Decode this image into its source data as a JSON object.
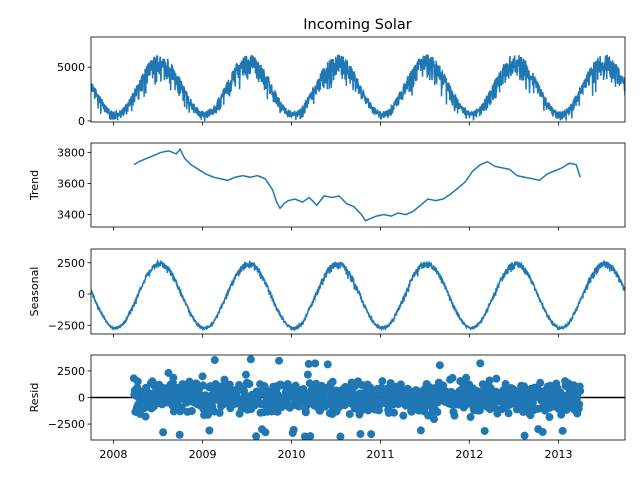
{
  "chart_data": {
    "type": "line",
    "title": "Incoming Solar",
    "x_tick_labels": [
      "2008",
      "2009",
      "2010",
      "2011",
      "2012",
      "2013"
    ],
    "xlim": [
      "2007-10-01",
      "2013-10-01"
    ],
    "series_color": "#1f77b4",
    "panels": [
      {
        "name": "observed",
        "ylabel": "",
        "kind": "line",
        "ylim": [
          -100,
          7800
        ],
        "yticks": [
          0,
          5000
        ],
        "ytick_labels": [
          "0",
          "5000"
        ],
        "model": {
          "mean": 3550,
          "amplitude": 2650,
          "noise": 1000,
          "peak_month": 6.3
        },
        "x": [
          "2007-10-01",
          "2007-12-01",
          "2008-02-01",
          "2008-04-01",
          "2008-06-01",
          "2008-08-01",
          "2008-10-01",
          "2008-12-01",
          "2009-02-01",
          "2009-04-01",
          "2009-06-01",
          "2009-08-01",
          "2009-10-01",
          "2009-12-01",
          "2010-02-01",
          "2010-04-01",
          "2010-06-01",
          "2010-08-01",
          "2010-10-01",
          "2010-12-01",
          "2011-02-01",
          "2011-04-01",
          "2011-06-01",
          "2011-08-01",
          "2011-10-01",
          "2011-12-01",
          "2012-02-01",
          "2012-04-01",
          "2012-06-01",
          "2012-08-01",
          "2012-10-01",
          "2012-12-01",
          "2013-02-01",
          "2013-04-01",
          "2013-06-01",
          "2013-08-01",
          "2013-10-01"
        ],
        "y": [
          2400,
          900,
          1500,
          3800,
          6600,
          5800,
          2600,
          900,
          1600,
          4000,
          6700,
          5600,
          2400,
          700,
          1300,
          3500,
          6200,
          5300,
          2200,
          600,
          1200,
          3600,
          6600,
          5600,
          2300,
          800,
          1400,
          3900,
          6900,
          5700,
          2300,
          800,
          1500,
          3800,
          6700,
          5800,
          2400
        ]
      },
      {
        "name": "trend",
        "ylabel": "Trend",
        "kind": "line",
        "ylim": [
          3320,
          3860
        ],
        "yticks": [
          3400,
          3600,
          3800
        ],
        "ytick_labels": [
          "3400",
          "3600",
          "3800"
        ],
        "x": [
          "2008-03-25",
          "2008-04-15",
          "2008-05-15",
          "2008-06-15",
          "2008-07-15",
          "2008-08-15",
          "2008-09-15",
          "2008-10-01",
          "2008-10-20",
          "2008-11-15",
          "2008-12-15",
          "2009-01-15",
          "2009-02-15",
          "2009-03-15",
          "2009-04-15",
          "2009-05-15",
          "2009-06-15",
          "2009-07-15",
          "2009-08-15",
          "2009-09-15",
          "2009-10-15",
          "2009-11-01",
          "2009-11-15",
          "2009-12-01",
          "2009-12-20",
          "2010-01-15",
          "2010-02-15",
          "2010-03-15",
          "2010-04-15",
          "2010-05-15",
          "2010-06-15",
          "2010-07-15",
          "2010-08-15",
          "2010-09-15",
          "2010-10-15",
          "2010-11-01",
          "2010-11-15",
          "2010-12-15",
          "2011-01-15",
          "2011-02-15",
          "2011-03-15",
          "2011-04-15",
          "2011-05-15",
          "2011-06-15",
          "2011-07-15",
          "2011-08-15",
          "2011-09-15",
          "2011-10-15",
          "2011-11-15",
          "2011-12-15",
          "2012-01-15",
          "2012-02-15",
          "2012-03-15",
          "2012-04-15",
          "2012-05-15",
          "2012-06-15",
          "2012-07-15",
          "2012-08-15",
          "2012-09-15",
          "2012-10-15",
          "2012-11-15",
          "2012-12-15",
          "2013-01-15",
          "2013-02-15",
          "2013-03-15",
          "2013-03-31"
        ],
        "y": [
          3720,
          3740,
          3760,
          3780,
          3800,
          3810,
          3790,
          3820,
          3760,
          3720,
          3690,
          3660,
          3640,
          3630,
          3620,
          3640,
          3650,
          3640,
          3650,
          3630,
          3560,
          3480,
          3440,
          3470,
          3490,
          3500,
          3480,
          3510,
          3460,
          3520,
          3510,
          3520,
          3470,
          3450,
          3400,
          3360,
          3370,
          3390,
          3400,
          3390,
          3410,
          3400,
          3420,
          3460,
          3500,
          3490,
          3500,
          3530,
          3570,
          3610,
          3680,
          3720,
          3740,
          3710,
          3700,
          3690,
          3650,
          3640,
          3630,
          3620,
          3660,
          3680,
          3700,
          3730,
          3720,
          3640
        ]
      },
      {
        "name": "seasonal",
        "ylabel": "Seasonal",
        "kind": "line",
        "ylim": [
          -3200,
          3600
        ],
        "yticks": [
          -2500,
          0,
          2500
        ],
        "ytick_labels": [
          "−2500",
          "0",
          "2500"
        ],
        "model": {
          "mean": 0,
          "amplitude": 2650,
          "noise": 250,
          "peak_month": 6.3
        },
        "x": [
          "2007-10-01",
          "2007-12-01",
          "2008-02-01",
          "2008-04-01",
          "2008-06-01",
          "2008-08-01",
          "2008-10-01",
          "2008-12-01",
          "2009-02-01",
          "2009-04-01",
          "2009-06-01",
          "2009-08-01",
          "2009-10-01",
          "2009-12-01",
          "2010-02-01",
          "2010-04-01",
          "2010-06-01",
          "2010-08-01",
          "2010-10-01",
          "2010-12-01",
          "2011-02-01",
          "2011-04-01",
          "2011-06-01",
          "2011-08-01",
          "2011-10-01",
          "2011-12-01",
          "2012-02-01",
          "2012-04-01",
          "2012-06-01",
          "2012-08-01",
          "2012-10-01",
          "2012-12-01",
          "2013-02-01",
          "2013-04-01",
          "2013-06-01",
          "2013-08-01",
          "2013-10-01"
        ],
        "y": [
          -1300,
          -2700,
          -2200,
          200,
          2700,
          2000,
          -1300,
          -2700,
          -2200,
          200,
          2700,
          2000,
          -1300,
          -2700,
          -2200,
          200,
          2700,
          2000,
          -1300,
          -2700,
          -2200,
          200,
          2700,
          2000,
          -1300,
          -2700,
          -2200,
          200,
          2700,
          2000,
          -1300,
          -2700,
          -2200,
          200,
          2700,
          2000,
          -1300
        ]
      },
      {
        "name": "resid",
        "ylabel": "Resid",
        "kind": "scatter",
        "ylim": [
          -4000,
          4000
        ],
        "yticks": [
          -2500,
          0,
          2500
        ],
        "ytick_labels": [
          "−2500",
          "0",
          "2500"
        ],
        "zero_line": true,
        "x_range": [
          "2008-03-25",
          "2013-03-31"
        ],
        "spread": 1100,
        "extremes": [
          3800,
          -3700
        ]
      }
    ]
  }
}
